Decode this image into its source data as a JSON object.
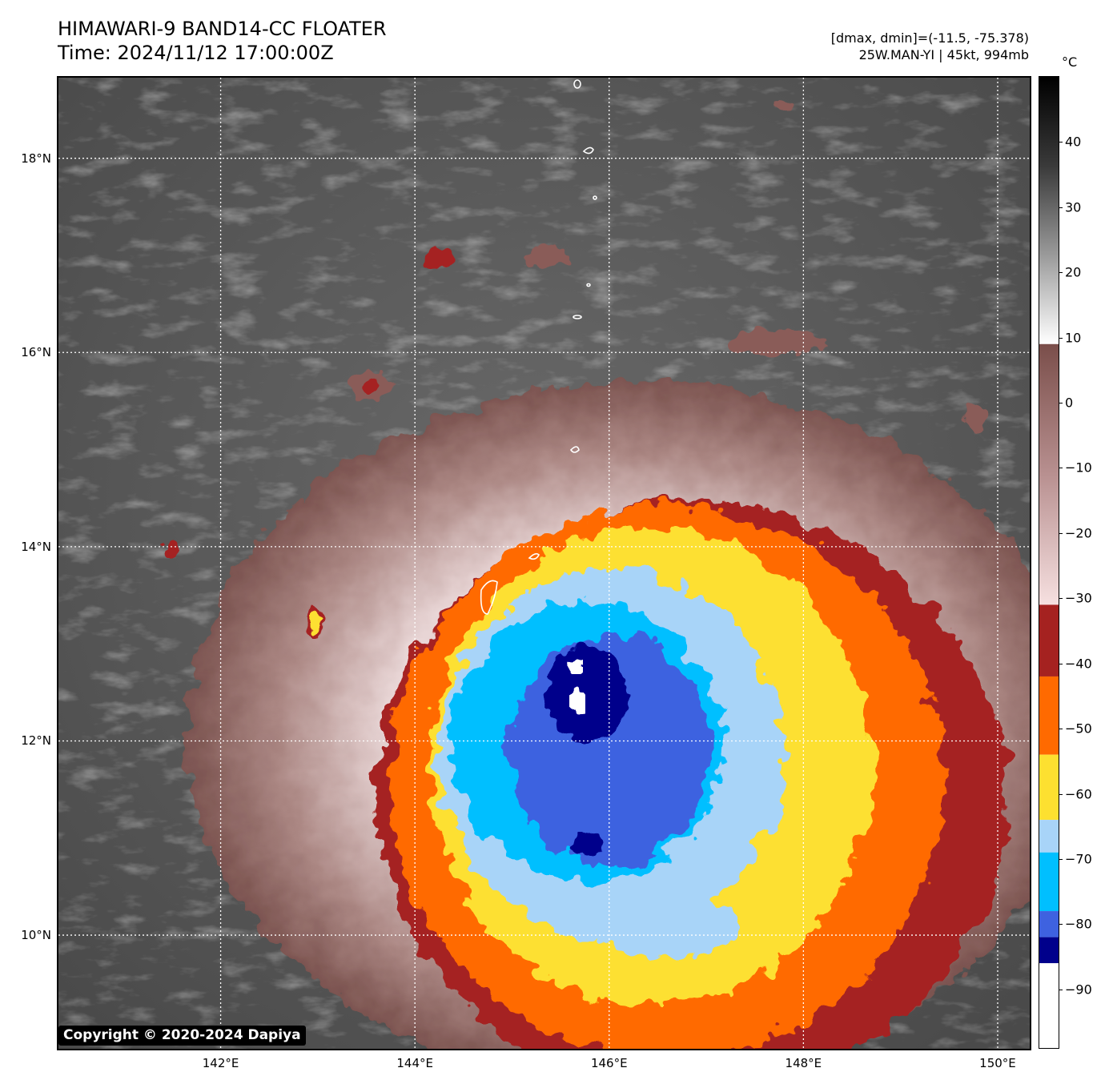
{
  "title": {
    "line1": "HIMAWARI-9 BAND14-CC FLOATER",
    "line2": "Time: 2024/11/12 17:00:00Z"
  },
  "info": {
    "range": "[dmax, dmin]=(-11.5, -75.378)",
    "storm": "25W.MAN-YI | 45kt, 994mb"
  },
  "map": {
    "lon_range": [
      140.33,
      150.33
    ],
    "lat_range": [
      8.83,
      18.83
    ],
    "lon_ticks": [
      {
        "value": 142,
        "label": "142°E"
      },
      {
        "value": 144,
        "label": "144°E"
      },
      {
        "value": 146,
        "label": "146°E"
      },
      {
        "value": 148,
        "label": "148°E"
      },
      {
        "value": 150,
        "label": "150°E"
      }
    ],
    "lat_ticks": [
      {
        "value": 10,
        "label": "10°N"
      },
      {
        "value": 12,
        "label": "12°N"
      },
      {
        "value": 14,
        "label": "14°N"
      },
      {
        "value": 16,
        "label": "16°N"
      },
      {
        "value": 18,
        "label": "18°N"
      }
    ],
    "storm_center": {
      "lon": 146.0,
      "lat": 12.2
    },
    "gridlines": "dotted white",
    "coastlines": "white",
    "colors": {
      "background": "#585858",
      "brown_ring": "#8a5c58",
      "dark_red": "#a52220",
      "orange": "#ff6a00",
      "yellow": "#fde030",
      "light_blue": "#a8d4f8",
      "cyan": "#00bfff",
      "royal_blue": "#3e62e0",
      "navy": "#00008b",
      "white_core": "#ffffff"
    }
  },
  "colorbar": {
    "unit": "°C",
    "range": [
      -99,
      50
    ],
    "ticks": [
      {
        "value": 40,
        "label": "40"
      },
      {
        "value": 30,
        "label": "30"
      },
      {
        "value": 20,
        "label": "20"
      },
      {
        "value": 10,
        "label": "10"
      },
      {
        "value": 0,
        "label": "0"
      },
      {
        "value": -10,
        "label": "−10"
      },
      {
        "value": -20,
        "label": "−20"
      },
      {
        "value": -30,
        "label": "−30"
      },
      {
        "value": -40,
        "label": "−40"
      },
      {
        "value": -50,
        "label": "−50"
      },
      {
        "value": -60,
        "label": "−60"
      },
      {
        "value": -70,
        "label": "−70"
      },
      {
        "value": -80,
        "label": "−80"
      },
      {
        "value": -90,
        "label": "−90"
      }
    ],
    "segments": [
      {
        "from": 9,
        "to": 50,
        "colors": [
          "#ffffff",
          "#9a9a9a",
          "#3a3a3a",
          "#000000"
        ]
      },
      {
        "from": -31,
        "to": 9,
        "colors": [
          "#f6e0e0",
          "#b89090",
          "#7a4e4a"
        ]
      },
      {
        "from": -42,
        "to": -31,
        "colors": [
          "#a52220"
        ]
      },
      {
        "from": -54,
        "to": -42,
        "colors": [
          "#ff6a00"
        ]
      },
      {
        "from": -64,
        "to": -54,
        "colors": [
          "#fde030"
        ]
      },
      {
        "from": -69,
        "to": -64,
        "colors": [
          "#a8d4f8"
        ]
      },
      {
        "from": -78,
        "to": -69,
        "colors": [
          "#00bfff"
        ]
      },
      {
        "from": -82,
        "to": -78,
        "colors": [
          "#3e62e0"
        ]
      },
      {
        "from": -86,
        "to": -82,
        "colors": [
          "#00008b"
        ]
      },
      {
        "from": -99,
        "to": -86,
        "colors": [
          "#ffffff"
        ]
      }
    ]
  },
  "copyright": "Copyright © 2020-2024 Dapiya"
}
